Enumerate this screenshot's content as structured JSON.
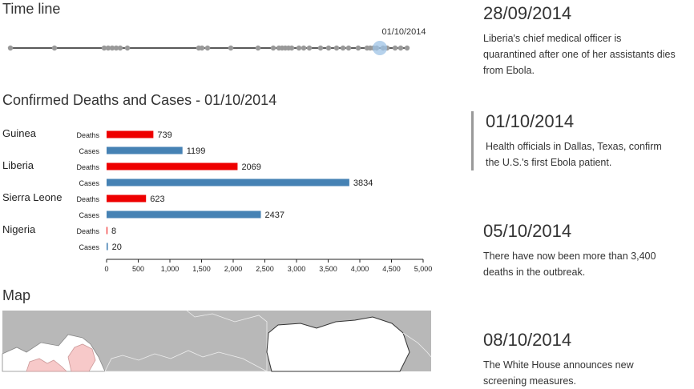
{
  "timeline": {
    "title": "Time line",
    "selected_label": "01/10/2014"
  },
  "chart_title": "Confirmed Deaths and Cases - 01/10/2014",
  "chart_data": {
    "type": "bar",
    "orientation": "horizontal",
    "groups": [
      {
        "country": "Guinea",
        "deaths": 739,
        "cases": 1199
      },
      {
        "country": "Liberia",
        "deaths": 2069,
        "cases": 3834
      },
      {
        "country": "Sierra Leone",
        "deaths": 623,
        "cases": 2437
      },
      {
        "country": "Nigeria",
        "deaths": 8,
        "cases": 20
      }
    ],
    "series_labels": {
      "deaths": "Deaths",
      "cases": "Cases"
    },
    "colors": {
      "deaths": "#ee0000",
      "cases": "#4682b4"
    },
    "xlim": [
      0,
      5000
    ],
    "x_ticks": [
      "0",
      "500",
      "1,000",
      "1,500",
      "2,000",
      "2,500",
      "3,000",
      "3,500",
      "4,000",
      "4,500",
      "5,000"
    ],
    "show_data_labels": true
  },
  "map_title": "Map",
  "events": [
    {
      "date": "28/09/2014",
      "text": "Liberia's chief medical officer is quarantined after one of her assistants dies from Ebola."
    },
    {
      "date": "01/10/2014",
      "text": "Health officials in Dallas, Texas, confirm the U.S.'s first Ebola patient.",
      "active": true
    },
    {
      "date": "05/10/2014",
      "text": "There have now been more than 3,400 deaths in the outbreak."
    },
    {
      "date": "08/10/2014",
      "text": "The White House announces new screening measures."
    }
  ],
  "colors": {
    "timeline_dot": "#999999",
    "timeline_selected": "#9ec3e6",
    "map_land": "#ffffff",
    "map_bg": "#b8b8b8",
    "map_affected": "#f7c9c9"
  }
}
